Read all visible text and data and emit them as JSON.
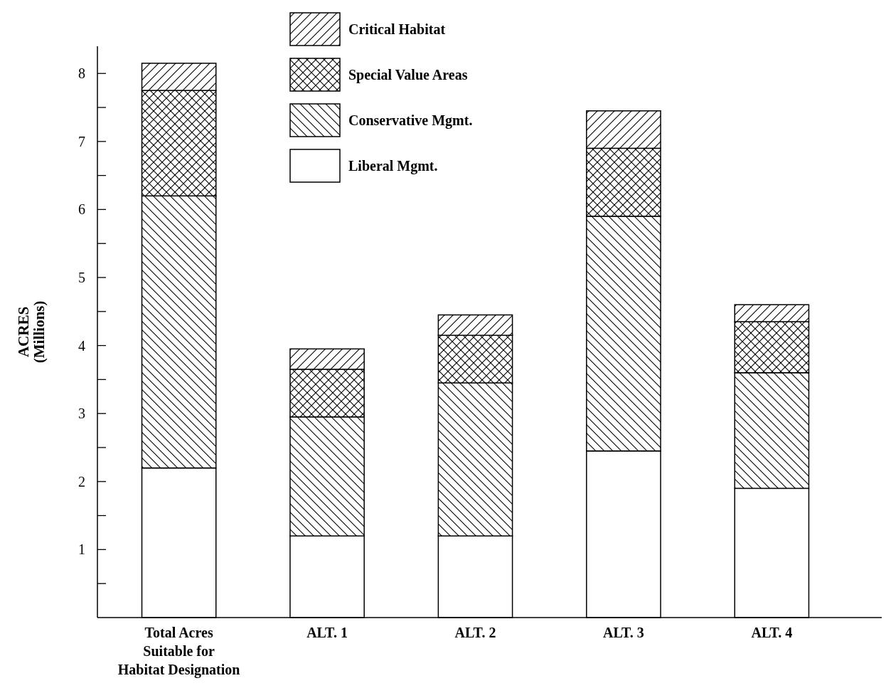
{
  "chart_data": {
    "type": "bar",
    "stacked": true,
    "ylabel": "ACRES (Millions)",
    "categories": [
      "Total Acres Suitable for Habitat Designation",
      "ALT. 1",
      "ALT. 2",
      "ALT. 3",
      "ALT. 4"
    ],
    "series": [
      {
        "name": "Liberal Mgmt.",
        "color": "#000000",
        "values": [
          2.2,
          1.2,
          1.2,
          2.45,
          1.9
        ]
      },
      {
        "name": "Conservative Mgmt.",
        "color": "#000000",
        "values": [
          4.0,
          1.75,
          2.25,
          3.45,
          1.7
        ]
      },
      {
        "name": "Special Value Areas",
        "color": "#000000",
        "values": [
          1.55,
          0.7,
          0.7,
          1.0,
          0.75
        ]
      },
      {
        "name": "Critical Habitat",
        "color": "#000000",
        "values": [
          0.4,
          0.3,
          0.3,
          0.55,
          0.25
        ]
      }
    ],
    "ylim": [
      0,
      8.4
    ],
    "yticks": [
      {
        "value": 0.5,
        "label": null
      },
      1,
      {
        "value": 1.5,
        "label": null
      },
      2,
      {
        "value": 2.5,
        "label": null
      },
      3,
      {
        "value": 3.5,
        "label": null
      },
      4,
      {
        "value": 4.5,
        "label": null
      },
      5,
      {
        "value": 5.5,
        "label": null
      },
      6,
      {
        "value": 6.5,
        "label": null
      },
      7,
      {
        "value": 7.5,
        "label": null
      },
      8
    ],
    "legend": "top",
    "grid": false
  }
}
